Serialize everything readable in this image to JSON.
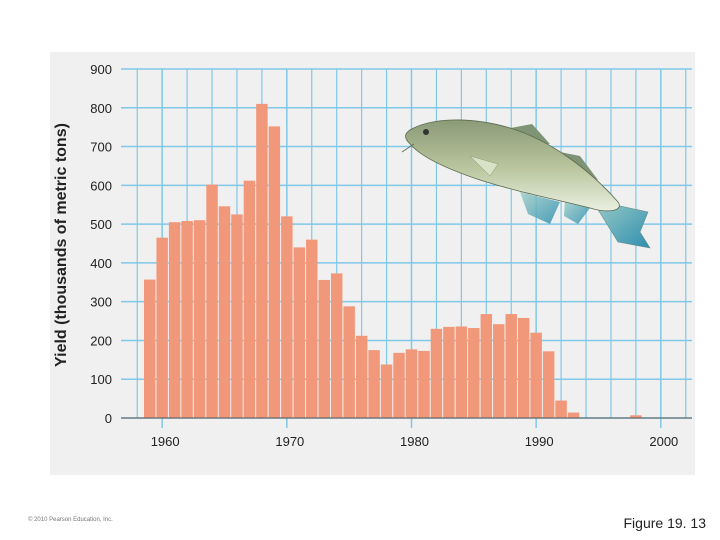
{
  "chart_data": {
    "type": "bar",
    "ylabel": "Yield (thousands of metric tons)",
    "xlabel": "",
    "ylim": [
      0,
      900
    ],
    "xlim": [
      1957.5,
      2002.5
    ],
    "yticks": [
      0,
      100,
      200,
      300,
      400,
      500,
      600,
      700,
      800,
      900
    ],
    "xticks": [
      1960,
      1970,
      1980,
      1990,
      2000
    ],
    "grid": true,
    "x": [
      1959,
      1960,
      1961,
      1962,
      1963,
      1964,
      1965,
      1966,
      1967,
      1968,
      1969,
      1970,
      1971,
      1972,
      1973,
      1974,
      1975,
      1976,
      1977,
      1978,
      1979,
      1980,
      1981,
      1982,
      1983,
      1984,
      1985,
      1986,
      1987,
      1988,
      1989,
      1990,
      1991,
      1992,
      1993,
      1994,
      1995,
      1996,
      1997,
      1998
    ],
    "values": [
      357,
      465,
      505,
      508,
      510,
      602,
      546,
      525,
      612,
      810,
      752,
      520,
      440,
      460,
      356,
      373,
      288,
      212,
      175,
      138,
      168,
      177,
      173,
      230,
      235,
      236,
      232,
      268,
      242,
      268,
      258,
      220,
      172,
      45,
      14,
      0,
      0,
      0,
      0,
      7
    ],
    "bar_color": "#f2987a",
    "background_color": "#f0f0f0",
    "grid_color": "#80c8e8"
  },
  "figure_label": "Figure 19. 13",
  "copyright": "© 2010 Pearson Education, Inc."
}
